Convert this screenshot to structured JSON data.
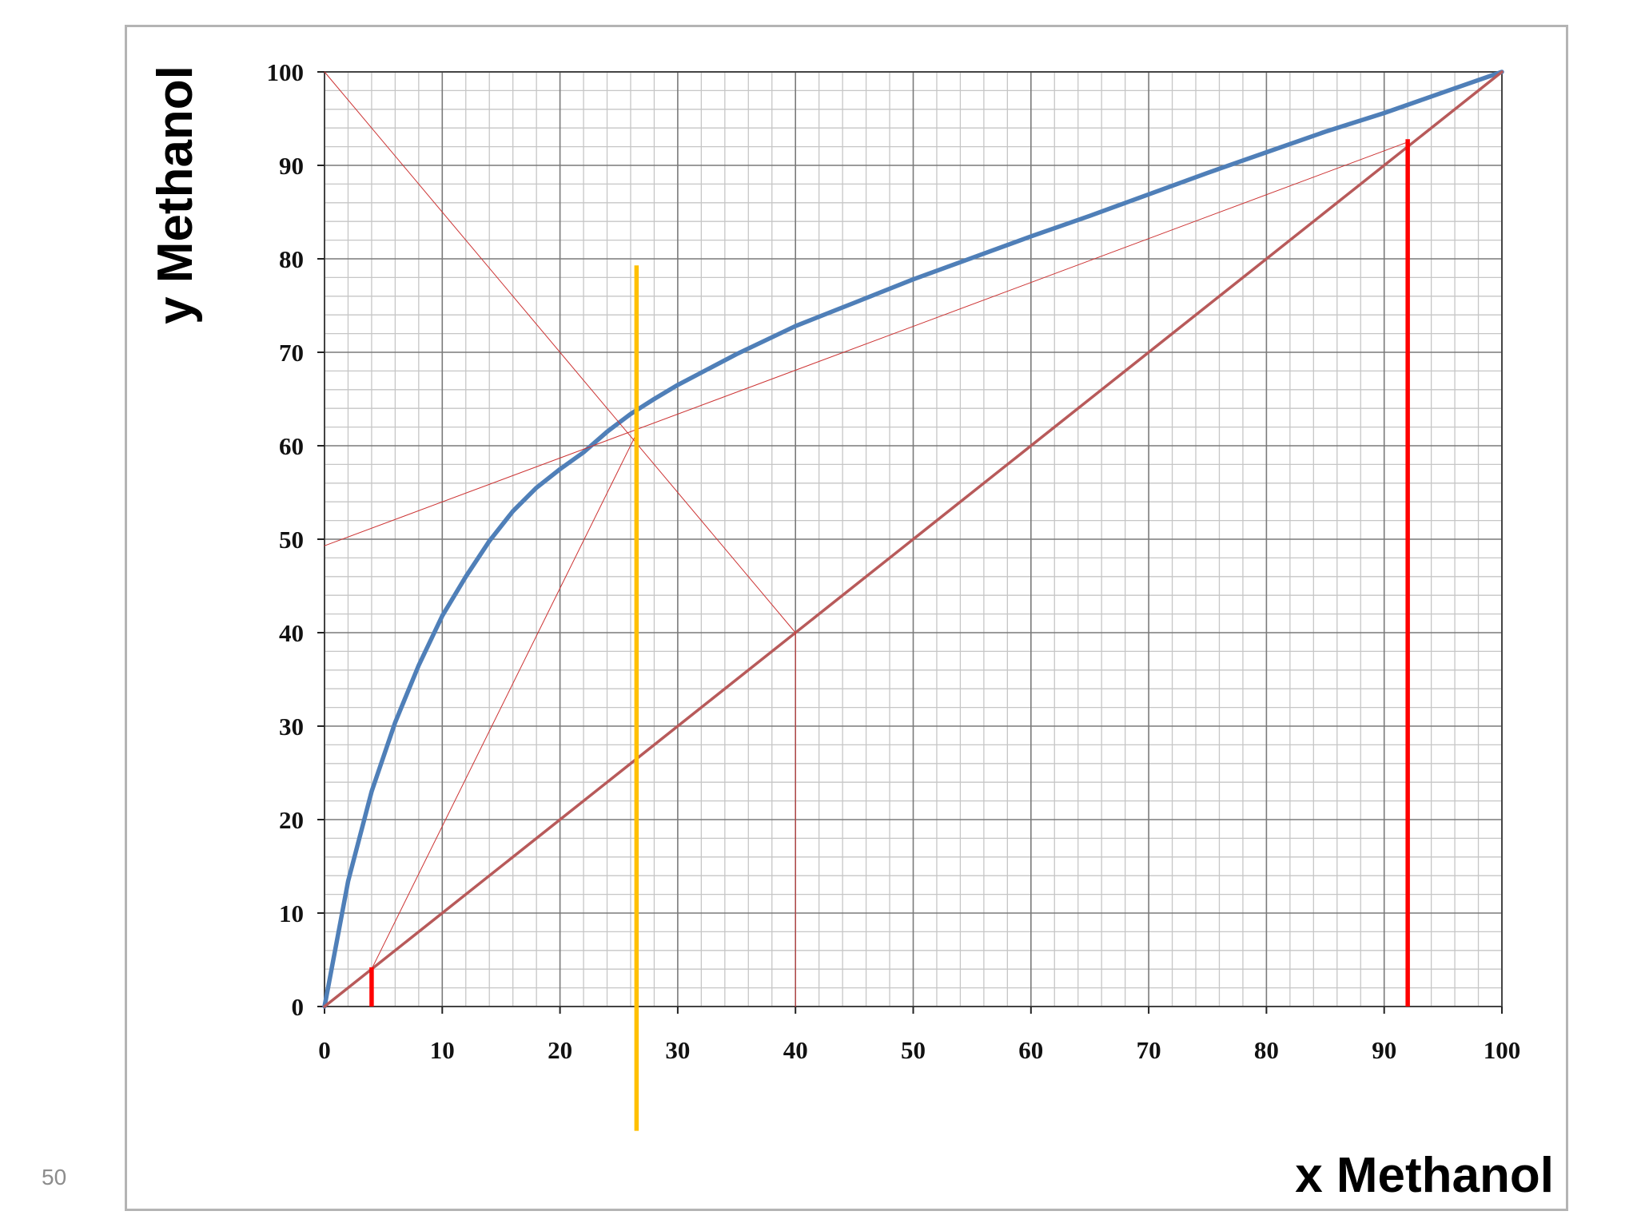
{
  "slide": {
    "page_number": "50"
  },
  "chart_data": {
    "type": "line",
    "title": "",
    "xlabel": "x Methanol",
    "ylabel": "y Methanol",
    "xlim": [
      0,
      100
    ],
    "ylim": [
      0,
      100
    ],
    "x_ticks": [
      0,
      10,
      20,
      30,
      40,
      50,
      60,
      70,
      80,
      90,
      100
    ],
    "y_ticks": [
      0,
      10,
      20,
      30,
      40,
      50,
      60,
      70,
      80,
      90,
      100
    ],
    "grid": true,
    "minor_grid_step": 2,
    "legend": "none",
    "series": [
      {
        "kind": "equilibrium-curve",
        "color": "#4f7fb8",
        "points": [
          [
            0,
            0
          ],
          [
            2,
            13.4
          ],
          [
            4,
            23
          ],
          [
            6,
            30.4
          ],
          [
            8,
            36.5
          ],
          [
            10,
            41.8
          ],
          [
            12,
            46
          ],
          [
            14,
            49.8
          ],
          [
            16,
            53
          ],
          [
            18,
            55.5
          ],
          [
            20,
            57.5
          ],
          [
            22,
            59.3
          ],
          [
            24,
            61.5
          ],
          [
            26,
            63.4
          ],
          [
            28,
            65
          ],
          [
            30,
            66.5
          ],
          [
            35,
            69.8
          ],
          [
            40,
            72.8
          ],
          [
            45,
            75.3
          ],
          [
            50,
            77.8
          ],
          [
            55,
            80.1
          ],
          [
            60,
            82.4
          ],
          [
            65,
            84.6
          ],
          [
            70,
            86.9
          ],
          [
            75,
            89.2
          ],
          [
            80,
            91.4
          ],
          [
            85,
            93.6
          ],
          [
            90,
            95.6
          ],
          [
            95,
            97.8
          ],
          [
            100,
            100
          ]
        ]
      },
      {
        "kind": "diagonal-y-equals-x",
        "color": "#b85a5a",
        "points": [
          [
            0,
            0
          ],
          [
            100,
            100
          ]
        ]
      },
      {
        "kind": "thin-operating-line",
        "color": "#cc3333",
        "points": [
          [
            0,
            49.3
          ],
          [
            92,
            92.5
          ]
        ]
      },
      {
        "kind": "thin-operating-line",
        "color": "#cc3333",
        "points": [
          [
            0,
            100
          ],
          [
            40,
            40
          ]
        ]
      },
      {
        "kind": "thin-operating-line",
        "color": "#cc3333",
        "points": [
          [
            4,
            4
          ],
          [
            26.5,
            61.3
          ]
        ]
      },
      {
        "kind": "thin-vertical",
        "color": "#cc3333",
        "points": [
          [
            40,
            0
          ],
          [
            40,
            40
          ]
        ]
      }
    ],
    "vertical_markers": [
      {
        "kind": "bottoms-composition",
        "x": 4,
        "y_from": 0,
        "y_to": 4.2,
        "color": "#ff0000"
      },
      {
        "kind": "distillate-composition",
        "x": 92,
        "y_from": 0,
        "y_to": 92.8,
        "color": "#ff0000"
      },
      {
        "kind": "feed-line",
        "x": 26.5,
        "y_from": -13.3,
        "y_to": 79.3,
        "color": "#ffc000"
      }
    ]
  }
}
